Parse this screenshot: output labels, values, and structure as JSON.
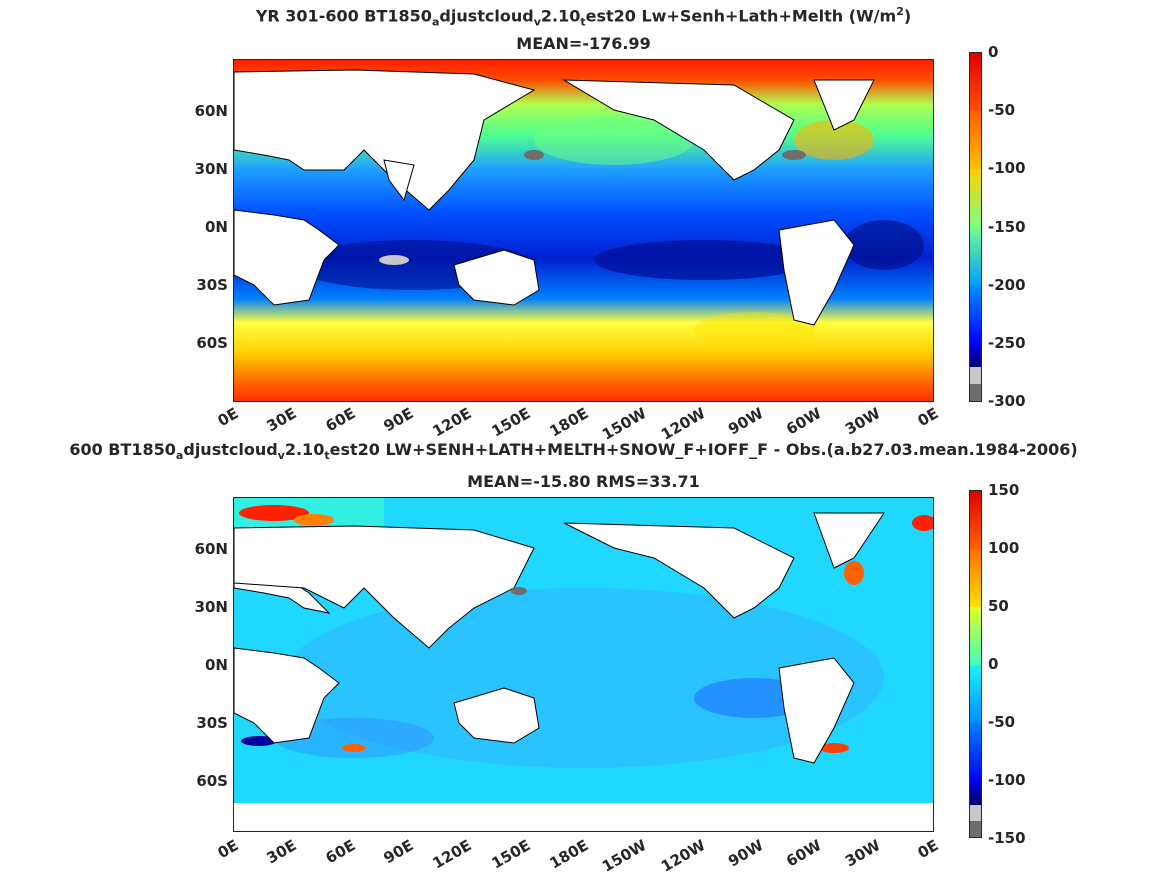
{
  "panel1": {
    "title_a": "YR 301-600 BT1850",
    "sub_a": "a",
    "title_b": "djustcloud",
    "sub_b": "v",
    "title_c": "2.10",
    "sub_c": "t",
    "title_d": "est20 Lw+Senh+Lath+Melth (W/m",
    "sup_d": "2",
    "title_e": ")",
    "stats": "MEAN=-176.99",
    "colorbar_ticks": [
      "0",
      "-50",
      "-100",
      "-150",
      "-200",
      "-250",
      "-300"
    ]
  },
  "panel2": {
    "title_a": "600 BT1850",
    "sub_a": "a",
    "title_b": "djustcloud",
    "sub_b": "v",
    "title_c": "2.10",
    "sub_c": "t",
    "title_d": "est20 LW+SENH+LATH+MELTH+SNOW_F+IOFF_F - Obs.(a.b27.03.mean.1984-2006)",
    "stats": "MEAN=-15.80 RMS=33.71",
    "colorbar_ticks": [
      "150",
      "100",
      "50",
      "0",
      "-50",
      "-100",
      "-150"
    ]
  },
  "lat_labels": [
    "60N",
    "30N",
    "0N",
    "30S",
    "60S"
  ],
  "lon_labels": [
    "0E",
    "30E",
    "60E",
    "90E",
    "120E",
    "150E",
    "180E",
    "150W",
    "120W",
    "90W",
    "60W",
    "30W",
    "0E"
  ],
  "colors": {
    "land": "#ffffff",
    "jet": [
      "#7f0000",
      "#ff0000",
      "#ff8000",
      "#ffff00",
      "#80ff80",
      "#00ffff",
      "#0080ff",
      "#0000ff",
      "#00007f"
    ],
    "missing_light": "#c8c8c8",
    "missing_dark": "#6e6e6e"
  }
}
